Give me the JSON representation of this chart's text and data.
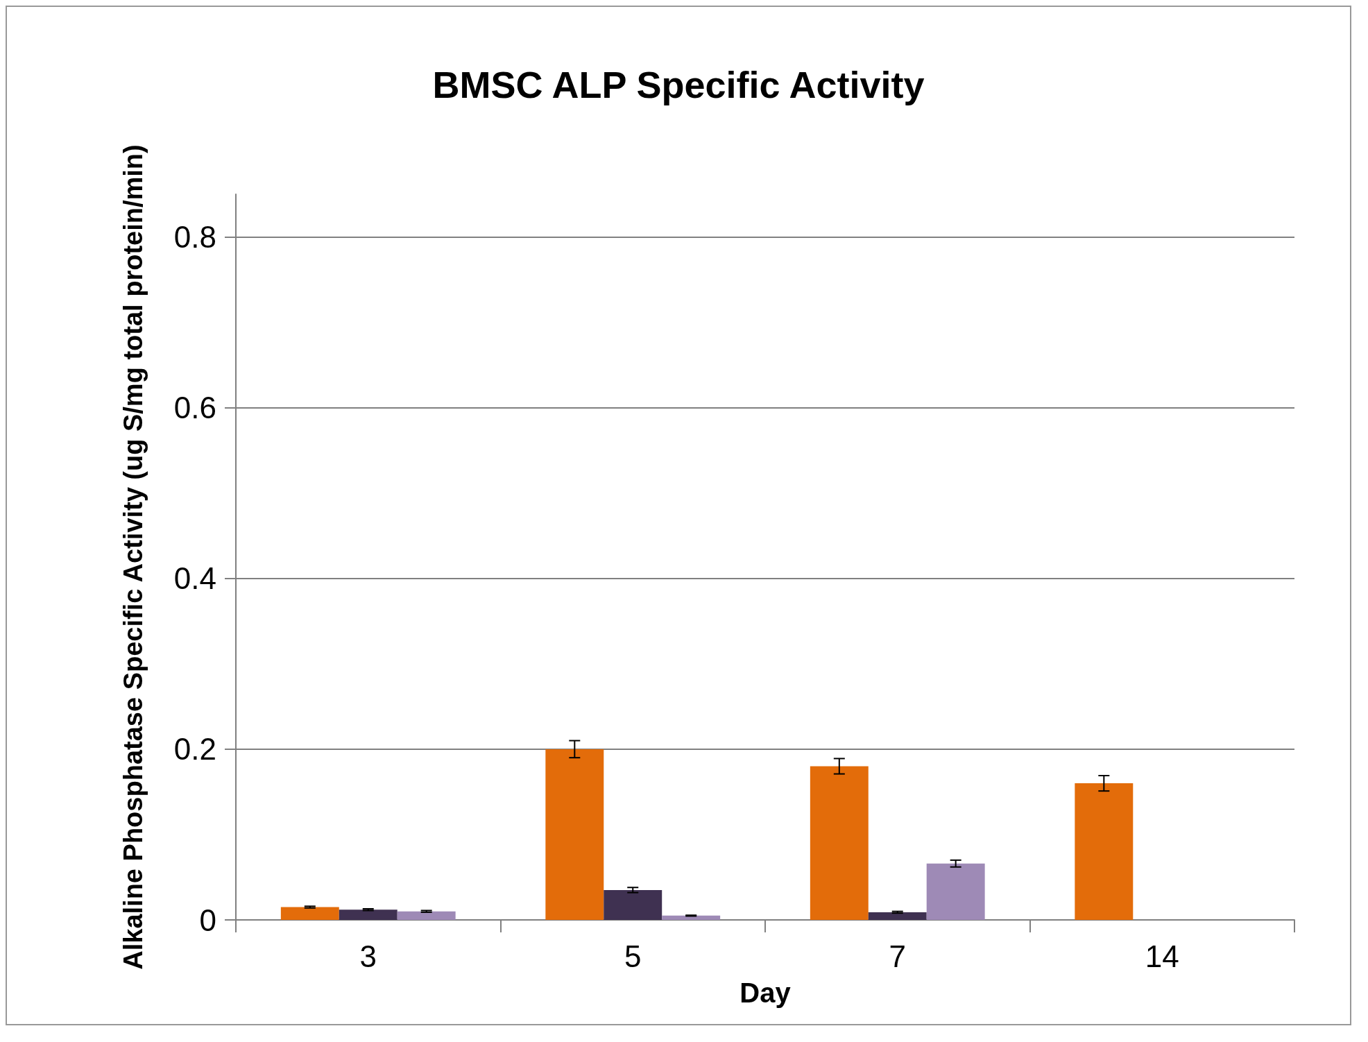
{
  "chart_data": {
    "type": "bar",
    "title": "BMSC ALP Specific Activity",
    "xlabel": "Day",
    "ylabel": "Alkaline Phosphatase Specific Activity (ug S/mg total protein/min)",
    "categories": [
      "3",
      "5",
      "7",
      "14"
    ],
    "series": [
      {
        "color": "#e36c0a",
        "values": [
          0.015,
          0.2,
          0.18,
          0.16
        ],
        "errors": [
          0.001,
          0.01,
          0.009,
          0.009
        ]
      },
      {
        "color": "#3f3151",
        "values": [
          0.012,
          0.035,
          0.009,
          null
        ],
        "errors": [
          0.001,
          0.003,
          0.001,
          null
        ]
      },
      {
        "color": "#9e8ab6",
        "values": [
          0.01,
          0.005,
          0.066,
          null
        ],
        "errors": [
          0.001,
          0.0005,
          0.004,
          null
        ]
      }
    ],
    "ylim": [
      0,
      0.85
    ],
    "yticks": [
      0,
      0.2,
      0.4,
      0.6,
      0.8
    ],
    "grid": "y"
  }
}
